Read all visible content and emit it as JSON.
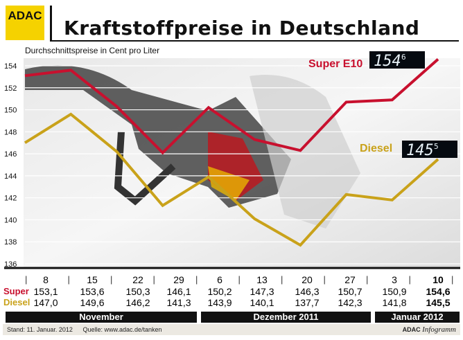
{
  "logo": "ADAC",
  "title": "Kraftstoffpreise in Deutschland",
  "subtitle": "Durchschnittspreise in Cent pro Liter",
  "colors": {
    "super": "#c8102e",
    "diesel": "#c9a21a",
    "logo": "#f5d200"
  },
  "chart_data": {
    "type": "line",
    "categories": [
      "8",
      "15",
      "22",
      "29",
      "6",
      "13",
      "20",
      "27",
      "3",
      "10"
    ],
    "series": [
      {
        "name": "Super E10",
        "values": [
          153.1,
          153.6,
          150.3,
          146.1,
          150.2,
          147.3,
          146.3,
          150.7,
          150.9,
          154.6
        ],
        "display": "1546"
      },
      {
        "name": "Diesel",
        "values": [
          147.0,
          149.6,
          146.2,
          141.3,
          143.9,
          140.1,
          137.7,
          142.3,
          141.8,
          145.5
        ],
        "display": "1455"
      }
    ],
    "ylim": [
      136,
      155
    ],
    "yticks": [
      136,
      138,
      140,
      142,
      144,
      146,
      148,
      150,
      152,
      154
    ],
    "grid": true
  },
  "table": {
    "super_label": "Super",
    "diesel_label": "Diesel",
    "super": [
      "153,1",
      "153,6",
      "150,3",
      "146,1",
      "150,2",
      "147,3",
      "146,3",
      "150,7",
      "150,9",
      "154,6"
    ],
    "diesel": [
      "147,0",
      "149,6",
      "146,2",
      "141,3",
      "143,9",
      "140,1",
      "137,7",
      "142,3",
      "141,8",
      "145,5"
    ]
  },
  "months": [
    "November",
    "Dezember 2011",
    "Januar 2012"
  ],
  "footer": {
    "stand": "Stand: 11. Januar. 2012",
    "quelle": "Quelle: www.adac.de/tanken",
    "brand": "ADAC",
    "brand2": "Infogramm"
  }
}
